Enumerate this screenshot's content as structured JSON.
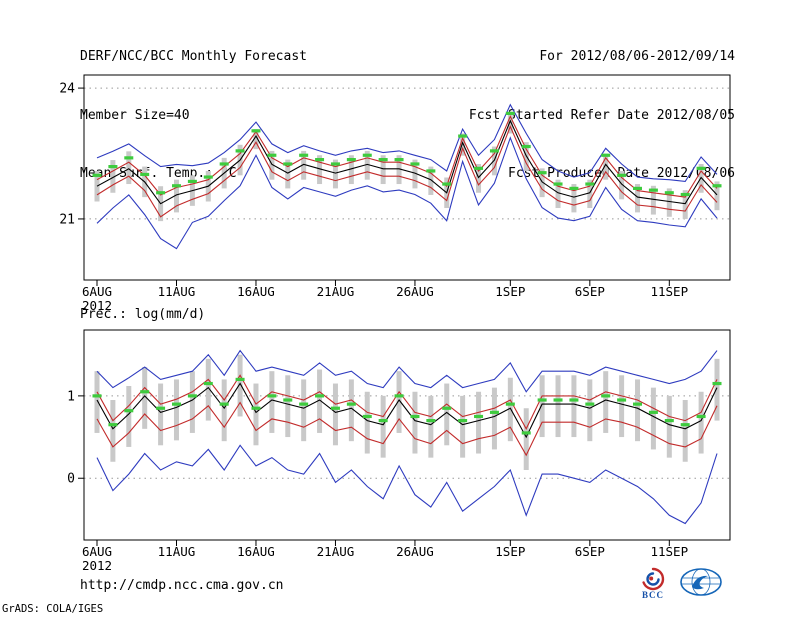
{
  "header": {
    "title": "DERF/NCC/BCC Monthly Forecast",
    "member_size": "Member Size=40",
    "forecast_range": "For 2012/08/06-2012/09/14",
    "refer_date": "Fcst Started Refer Date 2012/08/05",
    "produced_date": "Fcst Produced Date 2012/08/06"
  },
  "footer": {
    "url": "http://cmdp.ncc.cma.gov.cn",
    "grads_credit": "GrADS: COLA/IGES",
    "bcc_label": "BCC"
  },
  "colors": {
    "ensemble_min_max": "#2e3bbf",
    "spread_lines": "#c22b2b",
    "ensemble_mean": "#000000",
    "observation_dash": "#3ecb3e",
    "spread_bar": "#c9c9c9",
    "grid": "#999999"
  },
  "chart_data": [
    {
      "type": "line",
      "title": "Mean Surf. Temp.: °C",
      "ylabel": "",
      "ylim": [
        19.6,
        24.3
      ],
      "yticks": [
        21,
        24
      ],
      "n_points": 40,
      "x_tick_labels": [
        "6AUG",
        "11AUG",
        "16AUG",
        "21AUG",
        "26AUG",
        "1SEP",
        "6SEP",
        "11SEP"
      ],
      "x_tick_positions": [
        0,
        5,
        10,
        15,
        20,
        26,
        31,
        36
      ],
      "year_label": "2012",
      "grid": "dotted-at-yticks",
      "legend_position": "none",
      "bars": {
        "name": "ensemble-spread-bar",
        "color": "#c9c9c9",
        "top": [
          22.1,
          22.35,
          22.55,
          22.2,
          21.75,
          21.9,
          22.0,
          22.1,
          22.4,
          22.7,
          23.06,
          22.56,
          22.36,
          22.56,
          22.46,
          22.36,
          22.46,
          22.56,
          22.46,
          22.46,
          22.36,
          22.2,
          21.95,
          22.96,
          22.26,
          22.66,
          23.46,
          22.76,
          22.16,
          21.9,
          21.8,
          21.9,
          22.5,
          22.1,
          21.8,
          21.76,
          21.7,
          21.66,
          22.26,
          21.86
        ],
        "bottom": [
          21.4,
          21.6,
          21.8,
          21.5,
          20.95,
          21.15,
          21.3,
          21.4,
          21.7,
          22.0,
          22.6,
          21.9,
          21.7,
          21.9,
          21.8,
          21.7,
          21.8,
          21.9,
          21.8,
          21.8,
          21.7,
          21.55,
          21.25,
          22.45,
          21.6,
          22.0,
          22.96,
          22.1,
          21.5,
          21.25,
          21.15,
          21.25,
          21.9,
          21.45,
          21.15,
          21.1,
          21.05,
          21.0,
          21.6,
          21.2
        ]
      },
      "markers": {
        "name": "observation-dash",
        "color": "#3ecb3e",
        "values": [
          22.0,
          22.2,
          22.4,
          22.02,
          21.6,
          21.76,
          21.86,
          21.96,
          22.26,
          22.56,
          23.02,
          22.46,
          22.26,
          22.46,
          22.36,
          22.26,
          22.36,
          22.46,
          22.36,
          22.36,
          22.26,
          22.1,
          21.8,
          22.9,
          22.16,
          22.56,
          23.42,
          22.66,
          22.06,
          21.8,
          21.7,
          21.8,
          22.46,
          22.0,
          21.7,
          21.66,
          21.6,
          21.56,
          22.16,
          21.76
        ]
      },
      "series": [
        {
          "name": "ensemble-max",
          "color": "#2e3bbf",
          "values": [
            22.4,
            22.55,
            22.72,
            22.45,
            22.2,
            22.25,
            22.22,
            22.28,
            22.52,
            22.82,
            23.22,
            22.72,
            22.52,
            22.68,
            22.56,
            22.46,
            22.56,
            22.62,
            22.52,
            22.56,
            22.46,
            22.36,
            22.1,
            23.06,
            22.46,
            22.82,
            23.62,
            22.96,
            22.36,
            22.1,
            21.96,
            22.06,
            22.62,
            22.26,
            21.96,
            21.92,
            21.9,
            21.86,
            22.42,
            22.02
          ]
        },
        {
          "name": "upper-spread",
          "color": "#c22b2b",
          "values": [
            21.9,
            22.1,
            22.3,
            22.0,
            21.55,
            21.72,
            21.8,
            21.9,
            22.2,
            22.5,
            23.0,
            22.4,
            22.2,
            22.4,
            22.3,
            22.2,
            22.3,
            22.4,
            22.3,
            22.3,
            22.2,
            22.05,
            21.75,
            22.85,
            22.1,
            22.5,
            23.35,
            22.6,
            22.0,
            21.75,
            21.65,
            21.75,
            22.4,
            21.95,
            21.65,
            21.6,
            21.55,
            21.5,
            22.1,
            21.7
          ]
        },
        {
          "name": "ensemble-mean",
          "color": "#000000",
          "values": [
            21.75,
            21.95,
            22.15,
            21.85,
            21.35,
            21.55,
            21.65,
            21.75,
            22.05,
            22.35,
            22.9,
            22.25,
            22.05,
            22.25,
            22.15,
            22.05,
            22.15,
            22.25,
            22.15,
            22.15,
            22.05,
            21.9,
            21.6,
            22.75,
            21.95,
            22.35,
            23.25,
            22.45,
            21.85,
            21.6,
            21.5,
            21.6,
            22.25,
            21.8,
            21.5,
            21.45,
            21.4,
            21.35,
            21.95,
            21.55
          ]
        },
        {
          "name": "lower-spread",
          "color": "#c22b2b",
          "values": [
            21.55,
            21.78,
            21.98,
            21.65,
            21.05,
            21.3,
            21.45,
            21.58,
            21.88,
            22.18,
            22.76,
            22.08,
            21.88,
            22.08,
            21.98,
            21.88,
            21.98,
            22.08,
            21.98,
            21.98,
            21.88,
            21.72,
            21.42,
            22.62,
            21.78,
            22.18,
            23.12,
            22.28,
            21.68,
            21.42,
            21.32,
            21.42,
            22.08,
            21.62,
            21.32,
            21.28,
            21.22,
            21.18,
            21.78,
            21.38
          ]
        },
        {
          "name": "ensemble-min",
          "color": "#2e3bbf",
          "values": [
            20.9,
            21.25,
            21.55,
            21.1,
            20.55,
            20.32,
            20.92,
            21.06,
            21.42,
            21.76,
            22.46,
            21.72,
            21.46,
            21.72,
            21.62,
            21.52,
            21.66,
            21.76,
            21.62,
            21.66,
            21.56,
            21.36,
            20.96,
            22.32,
            21.32,
            21.82,
            22.86,
            21.92,
            21.26,
            21.02,
            20.96,
            21.06,
            21.72,
            21.22,
            20.96,
            20.92,
            20.86,
            20.82,
            21.46,
            21.02
          ]
        }
      ]
    },
    {
      "type": "line",
      "title": "Prec.: log(mm/d)",
      "ylabel": "",
      "ylim": [
        -0.75,
        1.8
      ],
      "yticks": [
        0,
        1
      ],
      "n_points": 40,
      "x_tick_labels": [
        "6AUG",
        "11AUG",
        "16AUG",
        "21AUG",
        "26AUG",
        "1SEP",
        "6SEP",
        "11SEP"
      ],
      "x_tick_positions": [
        0,
        5,
        10,
        15,
        20,
        26,
        31,
        36
      ],
      "year_label": "2012",
      "grid": "dotted-at-yticks",
      "legend_position": "none",
      "bars": {
        "name": "ensemble-spread-bar",
        "color": "#c9c9c9",
        "top": [
          1.3,
          0.95,
          1.12,
          1.35,
          1.15,
          1.2,
          1.3,
          1.45,
          1.2,
          1.5,
          1.15,
          1.3,
          1.25,
          1.2,
          1.32,
          1.15,
          1.2,
          1.05,
          1.0,
          1.3,
          1.05,
          1.0,
          1.15,
          1.0,
          1.05,
          1.1,
          1.22,
          0.85,
          1.25,
          1.25,
          1.25,
          1.2,
          1.3,
          1.25,
          1.2,
          1.1,
          1.0,
          0.95,
          1.05,
          1.45
        ],
        "bottom": [
          0.55,
          0.2,
          0.38,
          0.6,
          0.4,
          0.46,
          0.55,
          0.7,
          0.45,
          0.75,
          0.4,
          0.55,
          0.5,
          0.45,
          0.55,
          0.4,
          0.45,
          0.3,
          0.25,
          0.55,
          0.3,
          0.25,
          0.4,
          0.25,
          0.3,
          0.35,
          0.45,
          0.1,
          0.5,
          0.5,
          0.5,
          0.45,
          0.55,
          0.5,
          0.45,
          0.35,
          0.25,
          0.2,
          0.3,
          0.7
        ]
      },
      "markers": {
        "name": "observation-dash",
        "color": "#3ecb3e",
        "values": [
          1.0,
          0.65,
          0.82,
          1.05,
          0.85,
          0.9,
          1.0,
          1.15,
          0.9,
          1.2,
          0.85,
          1.0,
          0.95,
          0.9,
          1.0,
          0.85,
          0.9,
          0.75,
          0.7,
          1.0,
          0.75,
          0.7,
          0.85,
          0.7,
          0.75,
          0.8,
          0.9,
          0.55,
          0.95,
          0.95,
          0.95,
          0.9,
          1.0,
          0.95,
          0.9,
          0.8,
          0.7,
          0.65,
          0.75,
          1.15
        ]
      },
      "series": [
        {
          "name": "ensemble-max",
          "color": "#2e3bbf",
          "values": [
            1.3,
            1.1,
            1.22,
            1.35,
            1.2,
            1.25,
            1.3,
            1.5,
            1.25,
            1.55,
            1.3,
            1.35,
            1.3,
            1.25,
            1.4,
            1.25,
            1.3,
            1.15,
            1.1,
            1.35,
            1.15,
            1.1,
            1.25,
            1.1,
            1.15,
            1.2,
            1.4,
            1.05,
            1.3,
            1.3,
            1.3,
            1.25,
            1.35,
            1.3,
            1.25,
            1.2,
            1.15,
            1.2,
            1.3,
            1.55
          ]
        },
        {
          "name": "upper-spread",
          "color": "#c22b2b",
          "values": [
            1.05,
            0.7,
            0.88,
            1.1,
            0.9,
            0.96,
            1.05,
            1.2,
            0.95,
            1.25,
            0.9,
            1.05,
            1.0,
            0.95,
            1.05,
            0.9,
            0.95,
            0.8,
            0.75,
            1.05,
            0.8,
            0.75,
            0.9,
            0.75,
            0.8,
            0.85,
            0.95,
            0.6,
            1.0,
            1.0,
            1.0,
            0.95,
            1.05,
            1.0,
            0.95,
            0.85,
            0.75,
            0.7,
            0.8,
            1.2
          ]
        },
        {
          "name": "ensemble-mean",
          "color": "#000000",
          "values": [
            0.95,
            0.6,
            0.78,
            1.0,
            0.8,
            0.86,
            0.95,
            1.1,
            0.85,
            1.15,
            0.8,
            0.95,
            0.9,
            0.85,
            0.95,
            0.8,
            0.85,
            0.7,
            0.65,
            0.95,
            0.7,
            0.65,
            0.8,
            0.65,
            0.7,
            0.75,
            0.85,
            0.5,
            0.9,
            0.9,
            0.9,
            0.85,
            0.95,
            0.9,
            0.85,
            0.75,
            0.65,
            0.6,
            0.7,
            1.1
          ]
        },
        {
          "name": "lower-spread",
          "color": "#c22b2b",
          "values": [
            0.72,
            0.38,
            0.55,
            0.78,
            0.58,
            0.64,
            0.72,
            0.88,
            0.62,
            0.92,
            0.58,
            0.72,
            0.68,
            0.62,
            0.72,
            0.58,
            0.62,
            0.48,
            0.42,
            0.72,
            0.48,
            0.42,
            0.58,
            0.42,
            0.48,
            0.52,
            0.62,
            0.28,
            0.68,
            0.68,
            0.68,
            0.62,
            0.72,
            0.68,
            0.62,
            0.52,
            0.42,
            0.38,
            0.48,
            0.88
          ]
        },
        {
          "name": "ensemble-min",
          "color": "#2e3bbf",
          "values": [
            0.25,
            -0.15,
            0.05,
            0.3,
            0.1,
            0.2,
            0.15,
            0.35,
            0.1,
            0.4,
            0.15,
            0.25,
            0.1,
            0.05,
            0.3,
            -0.05,
            0.1,
            -0.1,
            -0.25,
            0.15,
            -0.2,
            -0.35,
            -0.05,
            -0.4,
            -0.25,
            -0.1,
            0.1,
            -0.45,
            0.05,
            0.05,
            0.0,
            -0.05,
            0.1,
            0.0,
            -0.1,
            -0.25,
            -0.45,
            -0.55,
            -0.3,
            0.3
          ]
        }
      ]
    }
  ]
}
